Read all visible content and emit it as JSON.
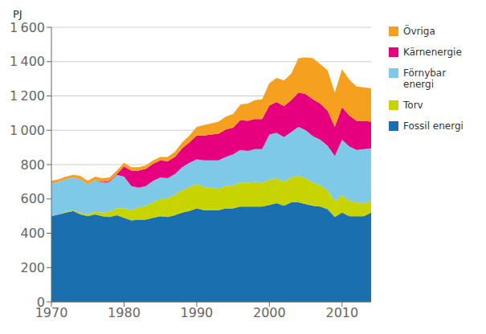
{
  "chart_data": {
    "type": "area",
    "stacked": true,
    "grid": true,
    "legend": "right",
    "ylabel": "PJ",
    "x": [
      1970,
      1971,
      1972,
      1973,
      1974,
      1975,
      1976,
      1977,
      1978,
      1979,
      1980,
      1981,
      1982,
      1983,
      1984,
      1985,
      1986,
      1987,
      1988,
      1989,
      1990,
      1991,
      1992,
      1993,
      1994,
      1995,
      1996,
      1997,
      1998,
      1999,
      2000,
      2001,
      2002,
      2003,
      2004,
      2005,
      2006,
      2007,
      2008,
      2009,
      2010,
      2011,
      2012,
      2013,
      2014
    ],
    "series": [
      {
        "name": "Fossil energi",
        "color": "#1a6faf",
        "values": [
          500,
          510,
          520,
          530,
          510,
          500,
          510,
          500,
          495,
          505,
          490,
          475,
          480,
          480,
          490,
          500,
          495,
          505,
          520,
          530,
          545,
          535,
          535,
          535,
          545,
          545,
          555,
          555,
          555,
          555,
          565,
          575,
          560,
          580,
          580,
          570,
          560,
          555,
          540,
          495,
          520,
          500,
          500,
          500,
          520
        ]
      },
      {
        "name": "Torv",
        "color": "#c8d400",
        "values": [
          0,
          0,
          5,
          5,
          8,
          10,
          15,
          20,
          30,
          40,
          55,
          60,
          70,
          80,
          90,
          100,
          110,
          120,
          130,
          140,
          140,
          135,
          130,
          125,
          130,
          135,
          140,
          140,
          145,
          140,
          145,
          145,
          140,
          145,
          155,
          150,
          135,
          125,
          110,
          95,
          100,
          90,
          80,
          75,
          70
        ]
      },
      {
        "name": "Förnybar\nenergi",
        "color": "#7ec8e8",
        "values": [
          190,
          190,
          190,
          190,
          195,
          175,
          185,
          175,
          175,
          195,
          185,
          140,
          115,
          115,
          125,
          125,
          115,
          120,
          135,
          140,
          145,
          155,
          160,
          165,
          170,
          180,
          190,
          185,
          190,
          195,
          265,
          265,
          260,
          265,
          285,
          280,
          270,
          265,
          260,
          260,
          325,
          315,
          305,
          315,
          305
        ]
      },
      {
        "name": "Kärnenergie",
        "color": "#e6007e",
        "values": [
          0,
          0,
          0,
          0,
          0,
          0,
          0,
          5,
          5,
          5,
          60,
          90,
          100,
          100,
          100,
          100,
          100,
          100,
          110,
          120,
          140,
          145,
          150,
          155,
          160,
          155,
          175,
          175,
          175,
          175,
          170,
          180,
          180,
          185,
          200,
          210,
          215,
          210,
          205,
          170,
          190,
          180,
          170,
          165,
          155
        ]
      },
      {
        "name": "Övriga",
        "color": "#f5a01e",
        "values": [
          15,
          15,
          15,
          15,
          20,
          20,
          20,
          20,
          20,
          20,
          20,
          20,
          20,
          20,
          20,
          20,
          25,
          30,
          35,
          40,
          50,
          60,
          65,
          70,
          75,
          80,
          90,
          100,
          110,
          115,
          130,
          140,
          150,
          155,
          200,
          215,
          240,
          230,
          235,
          200,
          220,
          210,
          200,
          195,
          195
        ]
      }
    ],
    "xlim": [
      1970,
      2014
    ],
    "xticks": [
      1970,
      1980,
      1990,
      2000,
      2010
    ],
    "ylim": [
      0,
      1600
    ],
    "yticks": [
      0,
      200,
      400,
      600,
      800,
      {
        "value": 1000,
        "label": "1 000"
      },
      {
        "value": 1200,
        "label": "1 200"
      },
      {
        "value": 1400,
        "label": "1 400"
      },
      {
        "value": 1600,
        "label": "1 600"
      }
    ]
  }
}
